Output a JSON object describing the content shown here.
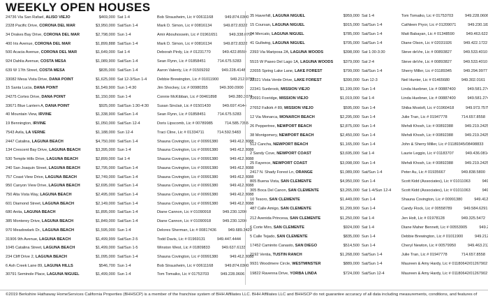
{
  "title": "WEEKLY OPEN HOUSES",
  "colors": {
    "background": "#ffffff",
    "text": "#1c1c1c",
    "rule": "#c6c6c6"
  },
  "listings": {
    "left": [
      {
        "street": "24736 Via San Rafael,",
        "city": "ALISO VIEJO",
        "price": "$469,000",
        "time": "Sat 1-4",
        "agent": "Bob Strausheim, Lic # 00611168",
        "phone": "949.874.0300"
      },
      {
        "street": "2328 Pacific Drive,",
        "city": "CORONA DEL MAR",
        "price": "$3,950,000",
        "time": "Sat/Sun 1-4",
        "agent": "Mark D. Simon, Lic # 00816134",
        "phone": "949.872.8322"
      },
      {
        "street": "34 Drakes Bay Drive,",
        "city": "CORONA DEL MAR",
        "price": "$2,798,000",
        "time": "Sun 1-4",
        "agent": "Amir Abouhossein, Lic # 01961651",
        "phone": "949.338.0707"
      },
      {
        "street": "400 Iris Avenue,",
        "city": "CORONA DEL MAR",
        "price": "$1,899,888",
        "time": "Sat/Sun 1-4",
        "agent": "Mark D. Simon, Lic # 00816134",
        "phone": "949.872.8322"
      },
      {
        "street": "500 Acacia Avenue,",
        "city": "CORONA DEL MAR",
        "price": "$1,649,000",
        "time": "Sat 1-4",
        "agent": "Deborah Pirdy, Lic # 01231770",
        "phone": "949.422.8550"
      },
      {
        "street": "924 Dahlia Avenue,",
        "city": "COSTA MESA",
        "price": "$1,089,900",
        "time": "Sat/Sun 1-4",
        "agent": "Sean Flynn, Lic # 01858451",
        "phone": "714.675.5283"
      },
      {
        "street": "639 W 17th Street,",
        "city": "COSTA MESA",
        "price": "$835,000",
        "time": "Sat/Sun 1-4",
        "agent": "Aaron Valenty, Lic # 01509292",
        "phone": "949.228.4148"
      },
      {
        "street": "33082 Mesa Vista Drive,",
        "city": "DANA POINT",
        "price": "$1,625,000",
        "time": "Sat 12-3/Sun 1-4",
        "agent": "Debbie Brewington, Lic # 01011900",
        "phone": "949.212.0733"
      },
      {
        "street": "15 Santa Lucia,",
        "city": "DANA POINT",
        "price": "$1,549,900",
        "time": "Sun 1-4:30",
        "agent": "Jim Shockey, Lic # 00980355",
        "phone": "949.300.0900"
      },
      {
        "street": "24275 Cortes Drive,",
        "city": "DANA POINT",
        "price": "$1,150,000",
        "time": "Sun 1-4",
        "agent": "Connie McKibban, Lic # 00461898",
        "phone": "949.280.3078"
      },
      {
        "street": "33671 Blue Lantern A,",
        "city": "DANA POINT",
        "price": "$925,000",
        "time": "Sat/Sun 1:30-4:30",
        "agent": "Susan Sinclair, Lic # 01501430",
        "phone": "949.697.4144"
      },
      {
        "street": "40 Mountain View,",
        "city": "IRVINE",
        "price": "$1,338,900",
        "time": "Sat/Sun 1-4",
        "agent": "Sean Flynn, Lic # 01858451",
        "phone": "714.675.5283"
      },
      {
        "street": "19 Bennington,",
        "city": "IRVINE",
        "price": "$1,050,000",
        "time": "Sat/Sun 12-4",
        "agent": "Doris Lipscomb, Lic # 00789985",
        "phone": "714.585.7355"
      },
      {
        "street": "7543 Avila,",
        "city": "LA VERNE",
        "price": "$1,188,000",
        "time": "Sun 12-4",
        "agent": "Traci Cline, Lic # 01334711",
        "phone": "714.592.5483"
      },
      {
        "street": "2447 Catalina,",
        "city": "LAGUNA BEACH",
        "price": "$4,750,000",
        "time": "Sat/Sun 1-4",
        "agent": "Shauna Covington, Lic # 00991380",
        "phone": "949.412.8088"
      },
      {
        "street": "134 Crescent Bay Drive,",
        "city": "LAGUNA BEACH",
        "price": "$3,395,000",
        "time": "Sun 1-4",
        "agent": "Shauna Covington, Lic # 00991380",
        "phone": "949.412.8088"
      },
      {
        "street": "530 Temple Hills Drive,",
        "city": "LAGUNA BEACH",
        "price": "$2,899,000",
        "time": "Sat 1-4",
        "agent": "Shauna Covington, Lic # 00991380",
        "phone": "949.412.8088"
      },
      {
        "street": "240 San Joaquin Street,",
        "city": "LAGUNA BEACH",
        "price": "$2,795,000",
        "time": "Sat/Sun 1-4",
        "agent": "Shauna Covington, Lic # 00991380",
        "phone": "949.412.8088"
      },
      {
        "street": "757 Coast View Drive,",
        "city": "LAGUNA BEACH",
        "price": "$2,749,000",
        "time": "Sat/Sun 1-4",
        "agent": "Shauna Covington, Lic # 00991380",
        "phone": "949.412.8088"
      },
      {
        "street": "950 Canyon View Drive,",
        "city": "LAGUNA BEACH",
        "price": "$2,695,000",
        "time": "Sat/Sun 1-4",
        "agent": "Shauna Covington, Lic # 00991380",
        "phone": "949.412.8088"
      },
      {
        "street": "750 Alta Vista Way,",
        "city": "LAGUNA BEACH",
        "price": "$2,495,000",
        "time": "Sat/Sun 1-4",
        "agent": "Shauna Covington, Lic # 00991380",
        "phone": "949.412.8088"
      },
      {
        "street": "601 Diamond Street,",
        "city": "LAGUNA BEACH",
        "price": "$2,149,000",
        "time": "Sat/Sun 1-4",
        "agent": "Shauna Covington, Lic # 00991380",
        "phone": "949.412.8088"
      },
      {
        "street": "680 Anita,",
        "city": "LAGUNA BEACH",
        "price": "$1,895,000",
        "time": "Sat/Sun 1-4",
        "agent": "Diane Cannon, Lic # 01090918",
        "phone": "949.230.1200"
      },
      {
        "street": "385 Monterey Drive,",
        "city": "LAGUNA BEACH",
        "price": "$1,849,000",
        "time": "Sat/Sun 1-4",
        "agent": "Diane Cannon, Lic # 01090918",
        "phone": "949.230.1200"
      },
      {
        "street": "970 Meadowlark Dr.,",
        "city": "LAGUNA BEACH",
        "price": "$1,595,000",
        "time": "Sun 1-4",
        "agent": "Delores Sherman, Lic # 00817436",
        "phone": "949.689.3429"
      },
      {
        "street": "31906 9th Avenue,",
        "city": "LAGUNA BEACH",
        "price": "$1,499,999",
        "time": "Sat/Sun 2-5",
        "agent": "Todd Davis, Lic # 01969131",
        "phone": "949.447.4444"
      },
      {
        "street": "1045 Catalina Street,",
        "city": "LAGUNA BEACH",
        "price": "$1,499,000",
        "time": "Sat/Sun 1-5",
        "agent": "Winston West, Lic # 01809833",
        "phone": "949.637.6133"
      },
      {
        "street": "234 Cliff Drive 2,",
        "city": "LAGUNA BEACH",
        "price": "$1,095,000",
        "time": "Sat/Sun 1-4",
        "agent": "Shauna Covington, Lic # 00991380",
        "phone": "949.412.8088"
      },
      {
        "street": "6 Ash Creek Lane 89,",
        "city": "LAGUNA HILLS",
        "price": "$546,700",
        "time": "Sun 1-4",
        "agent": "Bob Strausheim, Lic # 00611168",
        "phone": "949.874.0300"
      },
      {
        "street": "30791 Seminole Place,",
        "city": "LAGUNA NIGUEL",
        "price": "$1,499,000",
        "time": "Sun 1-4",
        "agent": "Tom Tomaiko, Lic # 01753703",
        "phone": "949.228.0606"
      }
    ],
    "right": [
      {
        "street": "35 Haverhill,",
        "city": "LAGUNA NIGUEL",
        "price": "$959,000",
        "time": "Sat 1-4",
        "agent": "Tom Tomaiko, Lic # 01753703",
        "phone": "949.228.0606"
      },
      {
        "street": "15 Coursan,",
        "city": "LAGUNA NIGUEL",
        "price": "$915,000",
        "time": "Sat/Sun 1-4",
        "agent": "Cathleen Pryor, Lic # 01209071",
        "phone": "949.230.1834"
      },
      {
        "street": "24 Mercato,",
        "city": "LAGUNA NIGUEL",
        "price": "$785,000",
        "time": "Sat/Sun 1-4",
        "agent": "Matt Babayan, Lic # 01348590",
        "phone": "949.463.6227"
      },
      {
        "street": "41 Gullwing,",
        "city": "LAGUNA NIGUEL",
        "price": "$705,000",
        "time": "Sat/Sun 1-4",
        "agent": "Diane Olson, Lic # 02031926",
        "phone": "949.422.1722"
      },
      {
        "street": "2393 Via Mariposa 2A,",
        "city": "LAGUNA WOODS",
        "price": "$398,000",
        "time": "Sat 1:30-3:30",
        "agent": "Steve deVre, Lic # 00893827",
        "phone": "949.533.4010"
      },
      {
        "street": "5515 W Paseo Del Lago 1A,",
        "city": "LAGUNA WOODS",
        "price": "$379,000",
        "time": "Sat 2-4",
        "agent": "Steve deVre, Lic # 00893827",
        "phone": "949.533.4010"
      },
      {
        "street": "22655 Spring Lake Lane,",
        "city": "LAKE FOREST",
        "price": "$799,000",
        "time": "Sat/Sun 1-4",
        "agent": "Sherry Miller, Lic # 01189345",
        "phone": "949.294.9977"
      },
      {
        "street": "22321 Vista Verde Drive,",
        "city": "LAKE FOREST",
        "price": "$390,000",
        "time": "Sun 12-3",
        "agent": "Neil Hunter, Lic # 01465680",
        "phone": "949.302.0161"
      },
      {
        "street": "22341 Sunbrook,",
        "city": "MISSION VIEJO",
        "price": "$1,199,000",
        "time": "Sun 1-4",
        "agent": "Linda Huebner, Lic # 00887400",
        "phone": "949.581.2742"
      },
      {
        "street": "22691 Foxridge,",
        "city": "MISSION VIEJO",
        "price": "$1,019,000",
        "time": "Sat 1-4",
        "agent": "Linda Huebner, Lic # 00887400",
        "phone": "949.581.2742"
      },
      {
        "street": "27652 Falkirk # 89,",
        "city": "MISSION VIEJO",
        "price": "$595,000",
        "time": "Sun 1-4",
        "agent": "Shiba Mostofi, Lic # 01960418",
        "phone": "949.973.7575"
      },
      {
        "street": "12 Via Monarca,",
        "city": "MONARCH BEACH",
        "price": "$2,295,000",
        "time": "Sun 1-4",
        "agent": "Julie Tran, Lic # 01947778",
        "phone": "714.657.8558"
      },
      {
        "street": "26 Peppertree,",
        "city": "NEWPORT BEACH",
        "price": "$2,875,000",
        "time": "Sun 1-4",
        "agent": "Mehdi Khosh, Lic # 00892388",
        "phone": "949.219.2425"
      },
      {
        "street": "38 Montgomery,",
        "city": "NEWPORT BEACH",
        "price": "$2,450,000",
        "time": "Sun 1-4",
        "agent": "Mehdi Khosh, Lic # 00892388",
        "phone": "949.219.2425"
      },
      {
        "street": "512 Cancha,",
        "city": "NEWPORT BEACH",
        "price": "$1,165,000",
        "time": "Sun 1-4",
        "agent": "John & Sherry Miller, Lic # 01189345/08498833",
        "phone": "949.219.2549"
      },
      {
        "street": "2 Sandy Cove,",
        "city": "NEWPORT COAST",
        "price": "$3,695,000",
        "time": "Sat 1-4",
        "agent": "Laurie Leggio, Lic # 01183707",
        "phone": "949.436.0814"
      },
      {
        "street": "25 Fayence,",
        "city": "NEWPORT COAST",
        "price": "$3,098,000",
        "time": "Sun 1-4",
        "agent": "Mehdi Khosh, Lic # 00892388",
        "phone": "949.219.2425"
      },
      {
        "street": "2417 N. Shady Forest Ln,",
        "city": "ORANGE",
        "price": "$1,089,000",
        "time": "Sat/Sun 1-4",
        "agent": "Peter Au, Lic # 01935667",
        "phone": "949.838.5800"
      },
      {
        "street": "805 Buena Vista,",
        "city": "SAN CLEMENTE",
        "price": "$4,950,000",
        "time": "Sun 1-4",
        "agent": "Scott Kidd (Associates), Lic # 01011063",
        "phone": "949.498.0487"
      },
      {
        "street": "305 Boca Del Canon,",
        "city": "SAN CLEMENTE",
        "price": "$3,265,000",
        "time": "Sat 1-4/Sun 12-4",
        "agent": "Scott Kidd (Associates), Lic # 01011063",
        "phone": "949.498.0487"
      },
      {
        "street": "10 Tesoro,",
        "city": "SAN CLEMENTE",
        "price": "$1,449,000",
        "time": "Sun 1-4",
        "agent": "Shauna Covington, Lic # 00991380",
        "phone": "949.412.8088"
      },
      {
        "street": "487 Calle Amigo,",
        "city": "SAN CLEMENTE",
        "price": "$1,299,900",
        "time": "Sun 1-4",
        "agent": "Candy Flock, Lic # 00558789",
        "phone": "949.584.6291"
      },
      {
        "street": "212 Avenida Princesa,",
        "city": "SAN CLEMENTE",
        "price": "$1,250,000",
        "time": "Sat 1-4",
        "agent": "Jen Holt, Lic # 01978128",
        "phone": "949.325.5472"
      },
      {
        "street": "6 Corte Miro,",
        "city": "SAN CLEMENTE",
        "price": "$924,000",
        "time": "Sat 1-4",
        "agent": "Diane Maher Bennett, Lic # 00553905",
        "phone": "949.233.2119"
      },
      {
        "street": "5 Calle Tejado,",
        "city": "SAN CLEMENTE",
        "price": "$835,000",
        "time": "Sun 1-4",
        "agent": "Debbie Brewington, Lic # 01011900",
        "phone": "949.212.0733"
      },
      {
        "street": "17452 Caminito Canasto,",
        "city": "SAN DIEGO",
        "price": "$514,500",
        "time": "Sun 1-4",
        "agent": "Cheryl Newton, Lic # 00579950",
        "phone": "949.463.2121"
      },
      {
        "street": "2192 Ventia,",
        "city": "TUSTIN RANCH",
        "price": "$1,268,000",
        "time": "Sat/Sun 1-4",
        "agent": "Julie Tran, Lic # 01947778",
        "phone": "714.657.8558"
      },
      {
        "street": "9931 Woodmere Circle,",
        "city": "WESTMINSTER",
        "price": "$889,000",
        "time": "Sat/Sun 1-4",
        "agent": "Maureen & Amy Hardy, Lic # 01180642/01267902",
        "phone": "949.584.3912"
      },
      {
        "street": "19822 Ravenna Drive,",
        "city": "YORBA LINDA",
        "price": "$724,000",
        "time": "Sat/Sun 12-4",
        "agent": "Maureen & Amy Hardy, Lic # 01180642/01267902",
        "phone": "949.584.3912"
      }
    ]
  },
  "footer": "©2019 Berkshire Hathaway HomeServices California Properties (BHHSCP) is a member of the franchise system of BHH Affiliates LLC. BHH Affiliates LLC and BHHSCP do not guarantee accuracy of all data including measurements, conditions, and features of"
}
